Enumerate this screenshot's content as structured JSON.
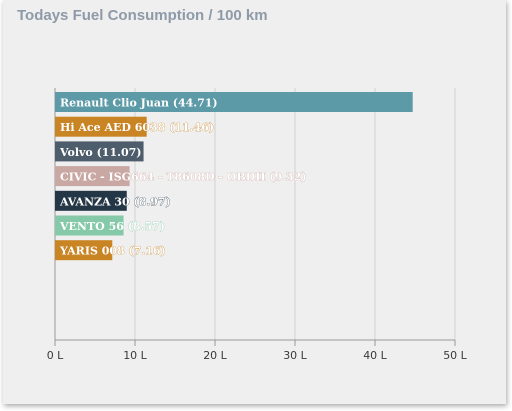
{
  "chart_data": {
    "type": "bar",
    "orientation": "horizontal",
    "title": "Todays Fuel Consumption / 100 km",
    "categories": [
      "Renault Clio Juan",
      "Hi Ace AED 6038",
      "Volvo",
      "CIVIC - ISG664 - T8608D - OBDII",
      "AVANZA 30",
      "VENTO 56",
      "YARIS 008"
    ],
    "values": [
      44.71,
      11.46,
      11.07,
      9.32,
      8.97,
      8.57,
      7.16
    ],
    "bar_labels": [
      "Renault Clio Juan (44.71)",
      "Hi Ace AED 6038 (11.46)",
      "Volvo (11.07)",
      "CIVIC - ISG664 - T8608D - OBDII (9.32)",
      "AVANZA 30 (8.97)",
      "VENTO 56 (8.57)",
      "YARIS 008 (7.16)"
    ],
    "colors": [
      "#5b9aa6",
      "#c98424",
      "#4e5d6c",
      "#c9a7a3",
      "#243746",
      "#86c9a9",
      "#c98424"
    ],
    "xlim": [
      0,
      50
    ],
    "xticks": [
      0,
      10,
      20,
      30,
      40,
      50
    ],
    "xtick_labels": [
      "0 L",
      "10 L",
      "20 L",
      "30 L",
      "40 L",
      "50 L"
    ],
    "xlabel": "",
    "ylabel": "",
    "grid": true
  }
}
